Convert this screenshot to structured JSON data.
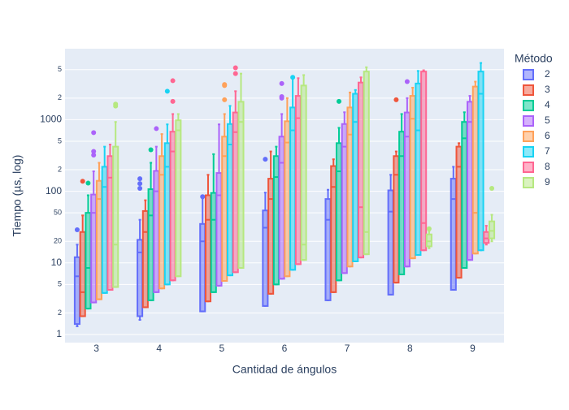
{
  "chart_data": {
    "type": "box",
    "xlabel": "Cantidad de ángulos",
    "ylabel": "Tiempo (µs, log)",
    "legend_title": "Método",
    "categories": [
      "3",
      "4",
      "5",
      "6",
      "7",
      "8",
      "9"
    ],
    "yscale": "log",
    "ylim": [
      0.77,
      9800
    ],
    "grid": true,
    "legend_position": "right",
    "yticks": [
      1,
      2,
      5,
      10,
      20,
      50,
      100,
      {
        "value": 200,
        "label": "2"
      },
      {
        "value": 500,
        "label": "5"
      },
      1000,
      {
        "value": 2000,
        "label": "2"
      },
      {
        "value": 5000,
        "label": "5"
      }
    ],
    "series": [
      {
        "name": "2",
        "color": "#636efa",
        "min": [
          1.3,
          1.6,
          2.1,
          2.5,
          3.0,
          3.6,
          4.2
        ],
        "q1": [
          1.4,
          1.8,
          2.1,
          2.5,
          3.0,
          3.6,
          4.2
        ],
        "median": [
          6.5,
          14,
          20,
          31,
          40,
          52,
          78
        ],
        "q3": [
          12,
          21,
          35,
          54,
          78,
          103,
          150
        ],
        "max": [
          18,
          40,
          80,
          96,
          105,
          170,
          220
        ],
        "outliers": [
          [
            29
          ],
          [
            150,
            128,
            110
          ],
          [
            84
          ],
          [
            280
          ],
          [],
          [],
          []
        ]
      },
      {
        "name": "3",
        "color": "#EF553B",
        "min": [
          1.8,
          2.4,
          2.9,
          3.7,
          3.9,
          5.3,
          6.2
        ],
        "q1": [
          1.8,
          2.4,
          2.9,
          3.7,
          3.9,
          5.3,
          6.2
        ],
        "median": [
          3.9,
          27,
          40,
          78,
          115,
          170,
          220
        ],
        "q3": [
          27,
          53,
          88,
          150,
          225,
          310,
          420
        ],
        "max": [
          46,
          75,
          170,
          360,
          280,
          360,
          470
        ],
        "outliers": [
          [
            138
          ],
          [],
          [],
          [],
          [],
          [
            1900
          ],
          []
        ]
      },
      {
        "name": "4",
        "color": "#00cc96",
        "min": [
          2.3,
          3.0,
          3.9,
          5.0,
          5.7,
          6.9,
          8.5
        ],
        "q1": [
          2.3,
          3.0,
          3.9,
          5.0,
          5.7,
          6.9,
          8.5
        ],
        "median": [
          8.5,
          46,
          40,
          158,
          190,
          310,
          550
        ],
        "q3": [
          50,
          107,
          95,
          310,
          470,
          680,
          930
        ],
        "max": [
          88,
          250,
          330,
          420,
          770,
          1200,
          1270
        ],
        "outliers": [
          [
            130
          ],
          [
            380
          ],
          [],
          [],
          [
            1800
          ],
          [],
          []
        ]
      },
      {
        "name": "5",
        "color": "#ab63fa",
        "min": [
          2.8,
          3.9,
          4.8,
          6.0,
          7.2,
          8.9,
          11
        ],
        "q1": [
          2.8,
          3.9,
          4.8,
          6.0,
          7.2,
          8.9,
          11
        ],
        "median": [
          50,
          100,
          88,
          250,
          420,
          580,
          930
        ],
        "q3": [
          90,
          193,
          180,
          580,
          870,
          1260,
          1780
        ],
        "max": [
          190,
          420,
          860,
          1200,
          1270,
          2000,
          2150
        ],
        "outliers": [
          [
            660,
            360,
            320
          ],
          [
            750
          ],
          [],
          [
            3200,
            2000,
            2100
          ],
          [],
          [
            3400
          ],
          []
        ]
      },
      {
        "name": "6",
        "color": "#FFA15A",
        "min": [
          3.1,
          4.4,
          5.6,
          6.5,
          8.9,
          11.6,
          13.5
        ],
        "q1": [
          3.1,
          4.4,
          5.6,
          6.5,
          8.9,
          11.6,
          13.5
        ],
        "median": [
          78,
          170,
          310,
          480,
          620,
          1030,
          50
        ],
        "q3": [
          140,
          310,
          580,
          950,
          1480,
          2150,
          2900
        ],
        "max": [
          250,
          630,
          1200,
          2000,
          2400,
          2800,
          3400
        ],
        "outliers": [
          [],
          [],
          [
            3000,
            3100,
            1900
          ],
          [],
          [],
          [],
          []
        ]
      },
      {
        "name": "7",
        "color": "#19d3f3",
        "min": [
          3.8,
          5.0,
          6.7,
          8.0,
          10.5,
          12.9,
          15
        ],
        "q1": [
          3.8,
          5.0,
          6.7,
          8.0,
          10.5,
          12.9,
          15
        ],
        "median": [
          115,
          220,
          450,
          710,
          930,
          710,
          2300
        ],
        "q3": [
          220,
          470,
          870,
          1480,
          2300,
          3200,
          4700
        ],
        "max": [
          420,
          860,
          1560,
          3800,
          2600,
          4800,
          6200
        ],
        "outliers": [
          [],
          [
            2500
          ],
          [],
          [
            3900
          ],
          [],
          [],
          []
        ]
      },
      {
        "name": "8",
        "color": "#FF6692",
        "min": [
          4.2,
          5.7,
          7.4,
          9.6,
          11.9,
          15,
          18
        ],
        "q1": [
          4.2,
          5.7,
          7.4,
          9.6,
          11.9,
          15,
          19
        ],
        "median": [
          155,
          360,
          670,
          1050,
          60,
          36,
          22
        ],
        "q3": [
          310,
          680,
          1260,
          2150,
          3300,
          4700,
          27
        ],
        "max": [
          450,
          1200,
          2500,
          3800,
          3900,
          4900,
          33
        ],
        "outliers": [
          [],
          [
            3500,
            1800
          ],
          [
            5300,
            4400
          ],
          [],
          [],
          [],
          []
        ]
      },
      {
        "name": "9",
        "color": "#B6E880",
        "min": [
          4.6,
          6.5,
          8.5,
          11,
          13.2,
          16,
          20
        ],
        "q1": [
          4.6,
          6.5,
          8.5,
          11,
          13.2,
          17,
          22
        ],
        "median": [
          18,
          710,
          930,
          18,
          27,
          20,
          28
        ],
        "q3": [
          420,
          980,
          1780,
          3000,
          4700,
          25,
          38
        ],
        "max": [
          930,
          1200,
          4400,
          4200,
          5400,
          28,
          47
        ],
        "outliers": [
          [
            1550,
            1650
          ],
          [],
          [],
          [],
          [],
          [
            30
          ],
          [
            110
          ]
        ]
      }
    ]
  }
}
